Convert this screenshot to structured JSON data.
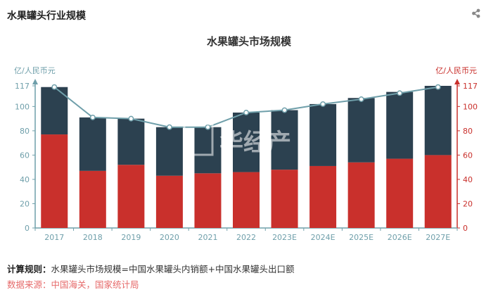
{
  "panel": {
    "title": "水果罐头行业规模"
  },
  "chart_data": {
    "type": "bar",
    "title": "水果罐头市场规模",
    "stacked": true,
    "categories": [
      "2017",
      "2018",
      "2019",
      "2020",
      "2021",
      "2022",
      "2023E",
      "2024E",
      "2025E",
      "2026E",
      "2027E"
    ],
    "series": [
      {
        "kind": "bar",
        "color": "#c9302c",
        "values": [
          77,
          47,
          52,
          43,
          45,
          46,
          48,
          51,
          54,
          57,
          60
        ]
      },
      {
        "kind": "bar",
        "color": "#2c4150",
        "values": [
          39,
          44,
          38,
          40,
          38,
          49,
          49,
          51,
          53,
          55,
          57
        ]
      },
      {
        "kind": "line",
        "color": "#6f9faa",
        "values": [
          116,
          91,
          90,
          83,
          83,
          95,
          97,
          102,
          106,
          111,
          116
        ]
      }
    ],
    "y_left": {
      "label": "亿/人民币元",
      "range": [
        0,
        117
      ],
      "ticks": [
        0,
        20,
        40,
        60,
        80,
        100,
        117
      ],
      "color": "#6f9faa"
    },
    "y_right": {
      "label": "亿/人民币元",
      "range": [
        0,
        117
      ],
      "ticks": [
        0,
        20,
        40,
        60,
        80,
        100,
        117
      ],
      "color": "#c9302c"
    },
    "grid": false
  },
  "watermark": {
    "brand": "华经产业研究院"
  },
  "footer": {
    "rule_label": "计算规则：",
    "rule_text": "水果罐头市场规模=中国水果罐头内销额+中国水果罐头出口额",
    "source": "数据来源：中国海关，国家统计局"
  },
  "icons": {
    "share": "share-icon"
  }
}
